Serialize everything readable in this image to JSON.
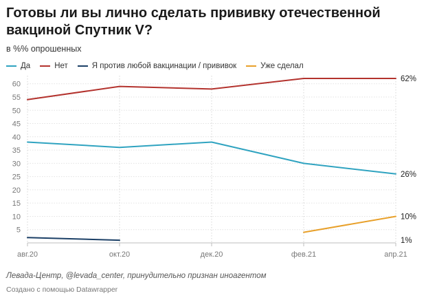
{
  "header": {
    "title": "Готовы ли вы лично сделать прививку отечественной вакциной Спутник V?",
    "subtitle": "в %% опрошенных"
  },
  "chart_data": {
    "type": "line",
    "categories": [
      "авг.20",
      "окт.20",
      "дек.20",
      "фев.21",
      "апр.21"
    ],
    "x_positions": [
      0,
      2,
      4,
      6,
      8
    ],
    "ylim": [
      0,
      62
    ],
    "yticks": [
      5,
      10,
      15,
      20,
      25,
      30,
      35,
      40,
      45,
      50,
      55,
      60
    ],
    "grid": true,
    "legend_position": "top-left",
    "series": [
      {
        "name": "Да",
        "color": "#2fa3c0",
        "points": [
          [
            0,
            38
          ],
          [
            2,
            36
          ],
          [
            4,
            38
          ],
          [
            6,
            30
          ],
          [
            8,
            26
          ]
        ]
      },
      {
        "name": "Нет",
        "color": "#b3322d",
        "points": [
          [
            0,
            54
          ],
          [
            2,
            59
          ],
          [
            4,
            58
          ],
          [
            6,
            62
          ],
          [
            8,
            62
          ]
        ]
      },
      {
        "name": "Я против любой вакцинации / прививок",
        "color": "#1b3f66",
        "points": [
          [
            0,
            2
          ],
          [
            2,
            1
          ]
        ]
      },
      {
        "name": "Уже сделал",
        "color": "#e8a02a",
        "points": [
          [
            6,
            4
          ],
          [
            8,
            10
          ]
        ]
      }
    ],
    "end_labels": [
      {
        "text": "62%",
        "value": 62
      },
      {
        "text": "26%",
        "value": 26
      },
      {
        "text": "10%",
        "value": 10
      },
      {
        "text": "1%",
        "value": 1
      }
    ]
  },
  "footer": {
    "source": "Левада-Центр, @levada_center, принудительно признан иноагентом",
    "credit": "Создано с помощью Datawrapper"
  }
}
